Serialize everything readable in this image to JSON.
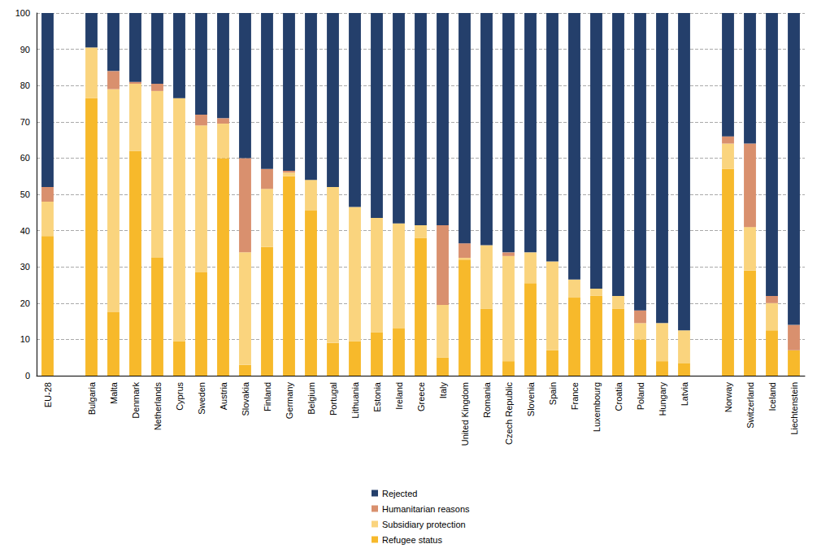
{
  "chart_data": {
    "type": "bar",
    "stacked": true,
    "grid": true,
    "legend": "bottom",
    "categories": [
      "EU-28",
      null,
      "Bulgaria",
      "Malta",
      "Denmark",
      "Netherlands",
      "Cyprus",
      "Sweden",
      "Austria",
      "Slovakia",
      "Finland",
      "Germany",
      "Belgium",
      "Portugal",
      "Lithuania",
      "Estonia",
      "Ireland",
      "Greece",
      "Italy",
      "United Kingdom",
      "Romania",
      "Czech Republic",
      "Slovenia",
      "Spain",
      "France",
      "Luxembourg",
      "Croatia",
      "Poland",
      "Hungary",
      "Latvia",
      null,
      "Norway",
      "Switzerland",
      "Iceland",
      "Liechtenstein"
    ],
    "series": [
      {
        "name": "Refugee status",
        "color": "#f7b92b",
        "values": [
          38.5,
          null,
          76.5,
          17.5,
          62,
          32.5,
          9.5,
          28.5,
          60,
          3,
          35.5,
          55,
          45.5,
          9,
          9.5,
          12,
          13,
          38,
          5,
          32,
          18.5,
          4,
          25.5,
          7,
          21.5,
          22,
          18.5,
          10,
          4,
          3.5,
          null,
          57,
          29,
          12.5,
          7
        ]
      },
      {
        "name": "Subsidiary protection",
        "color": "#fad47e",
        "values": [
          9.5,
          null,
          14,
          61.5,
          18.5,
          46,
          67,
          40.5,
          9.5,
          31,
          16,
          1,
          8.5,
          43,
          37,
          31.5,
          29,
          3.5,
          14.5,
          0.5,
          17.5,
          29,
          8.5,
          24.5,
          5,
          2,
          3.5,
          4.5,
          10.5,
          9,
          null,
          7,
          12,
          7.5,
          0
        ]
      },
      {
        "name": "Humanitarian reasons",
        "color": "#d9906e",
        "values": [
          4,
          null,
          0,
          5,
          0.5,
          2,
          0,
          3,
          1.5,
          26,
          5.5,
          0.5,
          0,
          0,
          0,
          0,
          0,
          0,
          22,
          4,
          0,
          1,
          0,
          0,
          0,
          0,
          0,
          3.5,
          0,
          0,
          null,
          2,
          23,
          2,
          7
        ]
      },
      {
        "name": "Rejected",
        "color": "#243f6b",
        "values": [
          48,
          null,
          9.5,
          16,
          19,
          19.5,
          23.5,
          28,
          29,
          40,
          43,
          43.5,
          46,
          48,
          53.5,
          56.5,
          58,
          58.5,
          58.5,
          63.5,
          64,
          66,
          66,
          68.5,
          73.5,
          76,
          78,
          82,
          85.5,
          87.5,
          null,
          34,
          36,
          78,
          86
        ]
      }
    ],
    "ylim": [
      0,
      100
    ],
    "yticks": [
      0,
      10,
      20,
      30,
      40,
      50,
      60,
      70,
      80,
      90,
      100
    ]
  }
}
